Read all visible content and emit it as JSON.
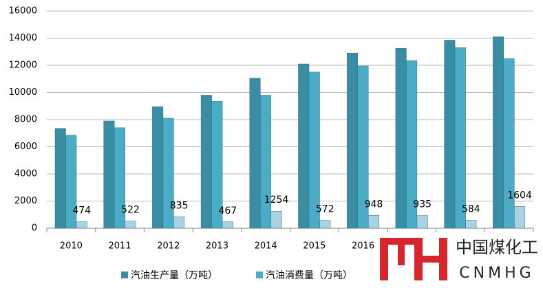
{
  "chart_data": {
    "type": "bar",
    "categories": [
      "2010",
      "2011",
      "2012",
      "2013",
      "2014",
      "2015",
      "2016",
      null,
      null,
      null
    ],
    "series": [
      {
        "name": "汽油生产量（万吨）",
        "color": "#3a8ea3",
        "values": [
          7350,
          7900,
          8950,
          9800,
          11050,
          12100,
          12900,
          13250,
          13850,
          14100
        ]
      },
      {
        "name": "汽油消费量（万吨）",
        "color": "#4bacc6",
        "values": [
          6850,
          7400,
          8100,
          9350,
          9800,
          11500,
          11950,
          12350,
          13300,
          12500
        ]
      },
      {
        "color": "#a9d3e0",
        "values": [
          474,
          522,
          835,
          467,
          1254,
          572,
          948,
          935,
          584,
          1604
        ],
        "data_labels": true
      }
    ],
    "ylim": [
      0,
      16000
    ],
    "yticks": [
      0,
      2000,
      4000,
      6000,
      8000,
      10000,
      12000,
      14000,
      16000
    ],
    "grid": true,
    "legend": "bottom"
  },
  "watermark": {
    "name": "中国煤化工",
    "abbr": "CNMHG"
  }
}
